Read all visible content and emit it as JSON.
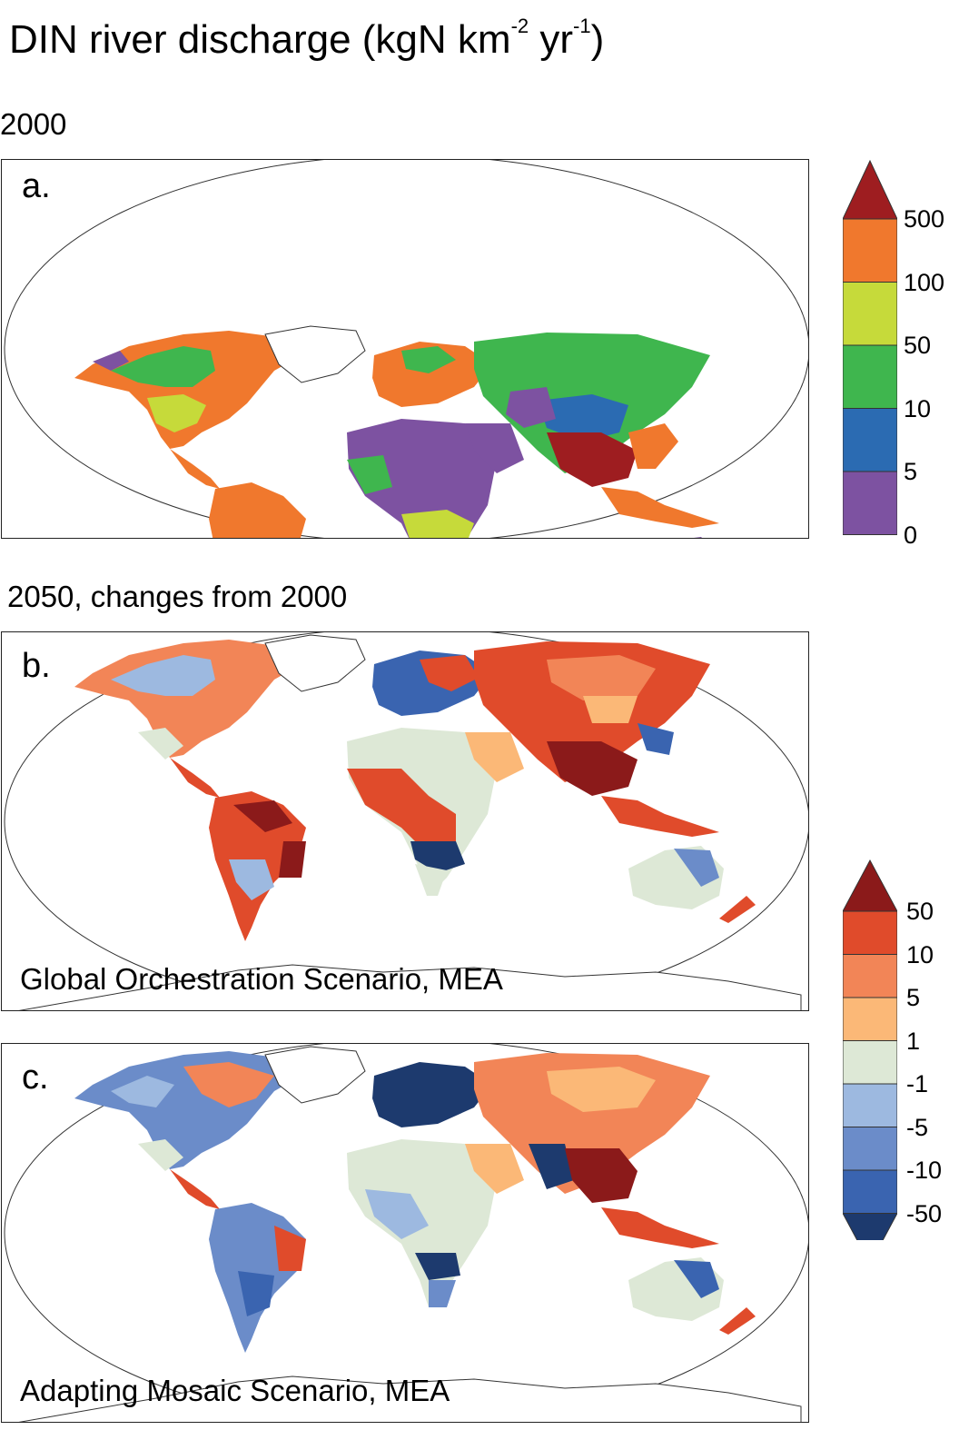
{
  "title": {
    "prefix": "DIN river discharge  (kgN km",
    "sup1": "-2",
    "mid": " yr",
    "sup2": "-1",
    "suffix": ")"
  },
  "section_2000": "2000",
  "section_2050": "2050, changes from 2000",
  "panels": {
    "a": {
      "letter": "a."
    },
    "b": {
      "letter": "b.",
      "scenario": "Global Orchestration Scenario, MEA"
    },
    "c": {
      "letter": "c.",
      "scenario": "Adapting Mosaic Scenario, MEA"
    }
  },
  "legend_2000": {
    "labels": [
      "500",
      "100",
      "50",
      "10",
      "5",
      "0"
    ],
    "colors": [
      "#9e1d20",
      "#f0782d",
      "#c6da3a",
      "#3fb64e",
      "#2b6bb2",
      "#7d52a1"
    ]
  },
  "legend_change": {
    "labels": [
      "50",
      "10",
      "5",
      "1",
      "-1",
      "-5",
      "-10",
      "-50"
    ],
    "colors": [
      "#8b1a1a",
      "#e04b2b",
      "#f28557",
      "#fbb877",
      "#dde8d6",
      "#9db9e0",
      "#6b8cc9",
      "#3a64b0",
      "#1d3a6e"
    ]
  }
}
